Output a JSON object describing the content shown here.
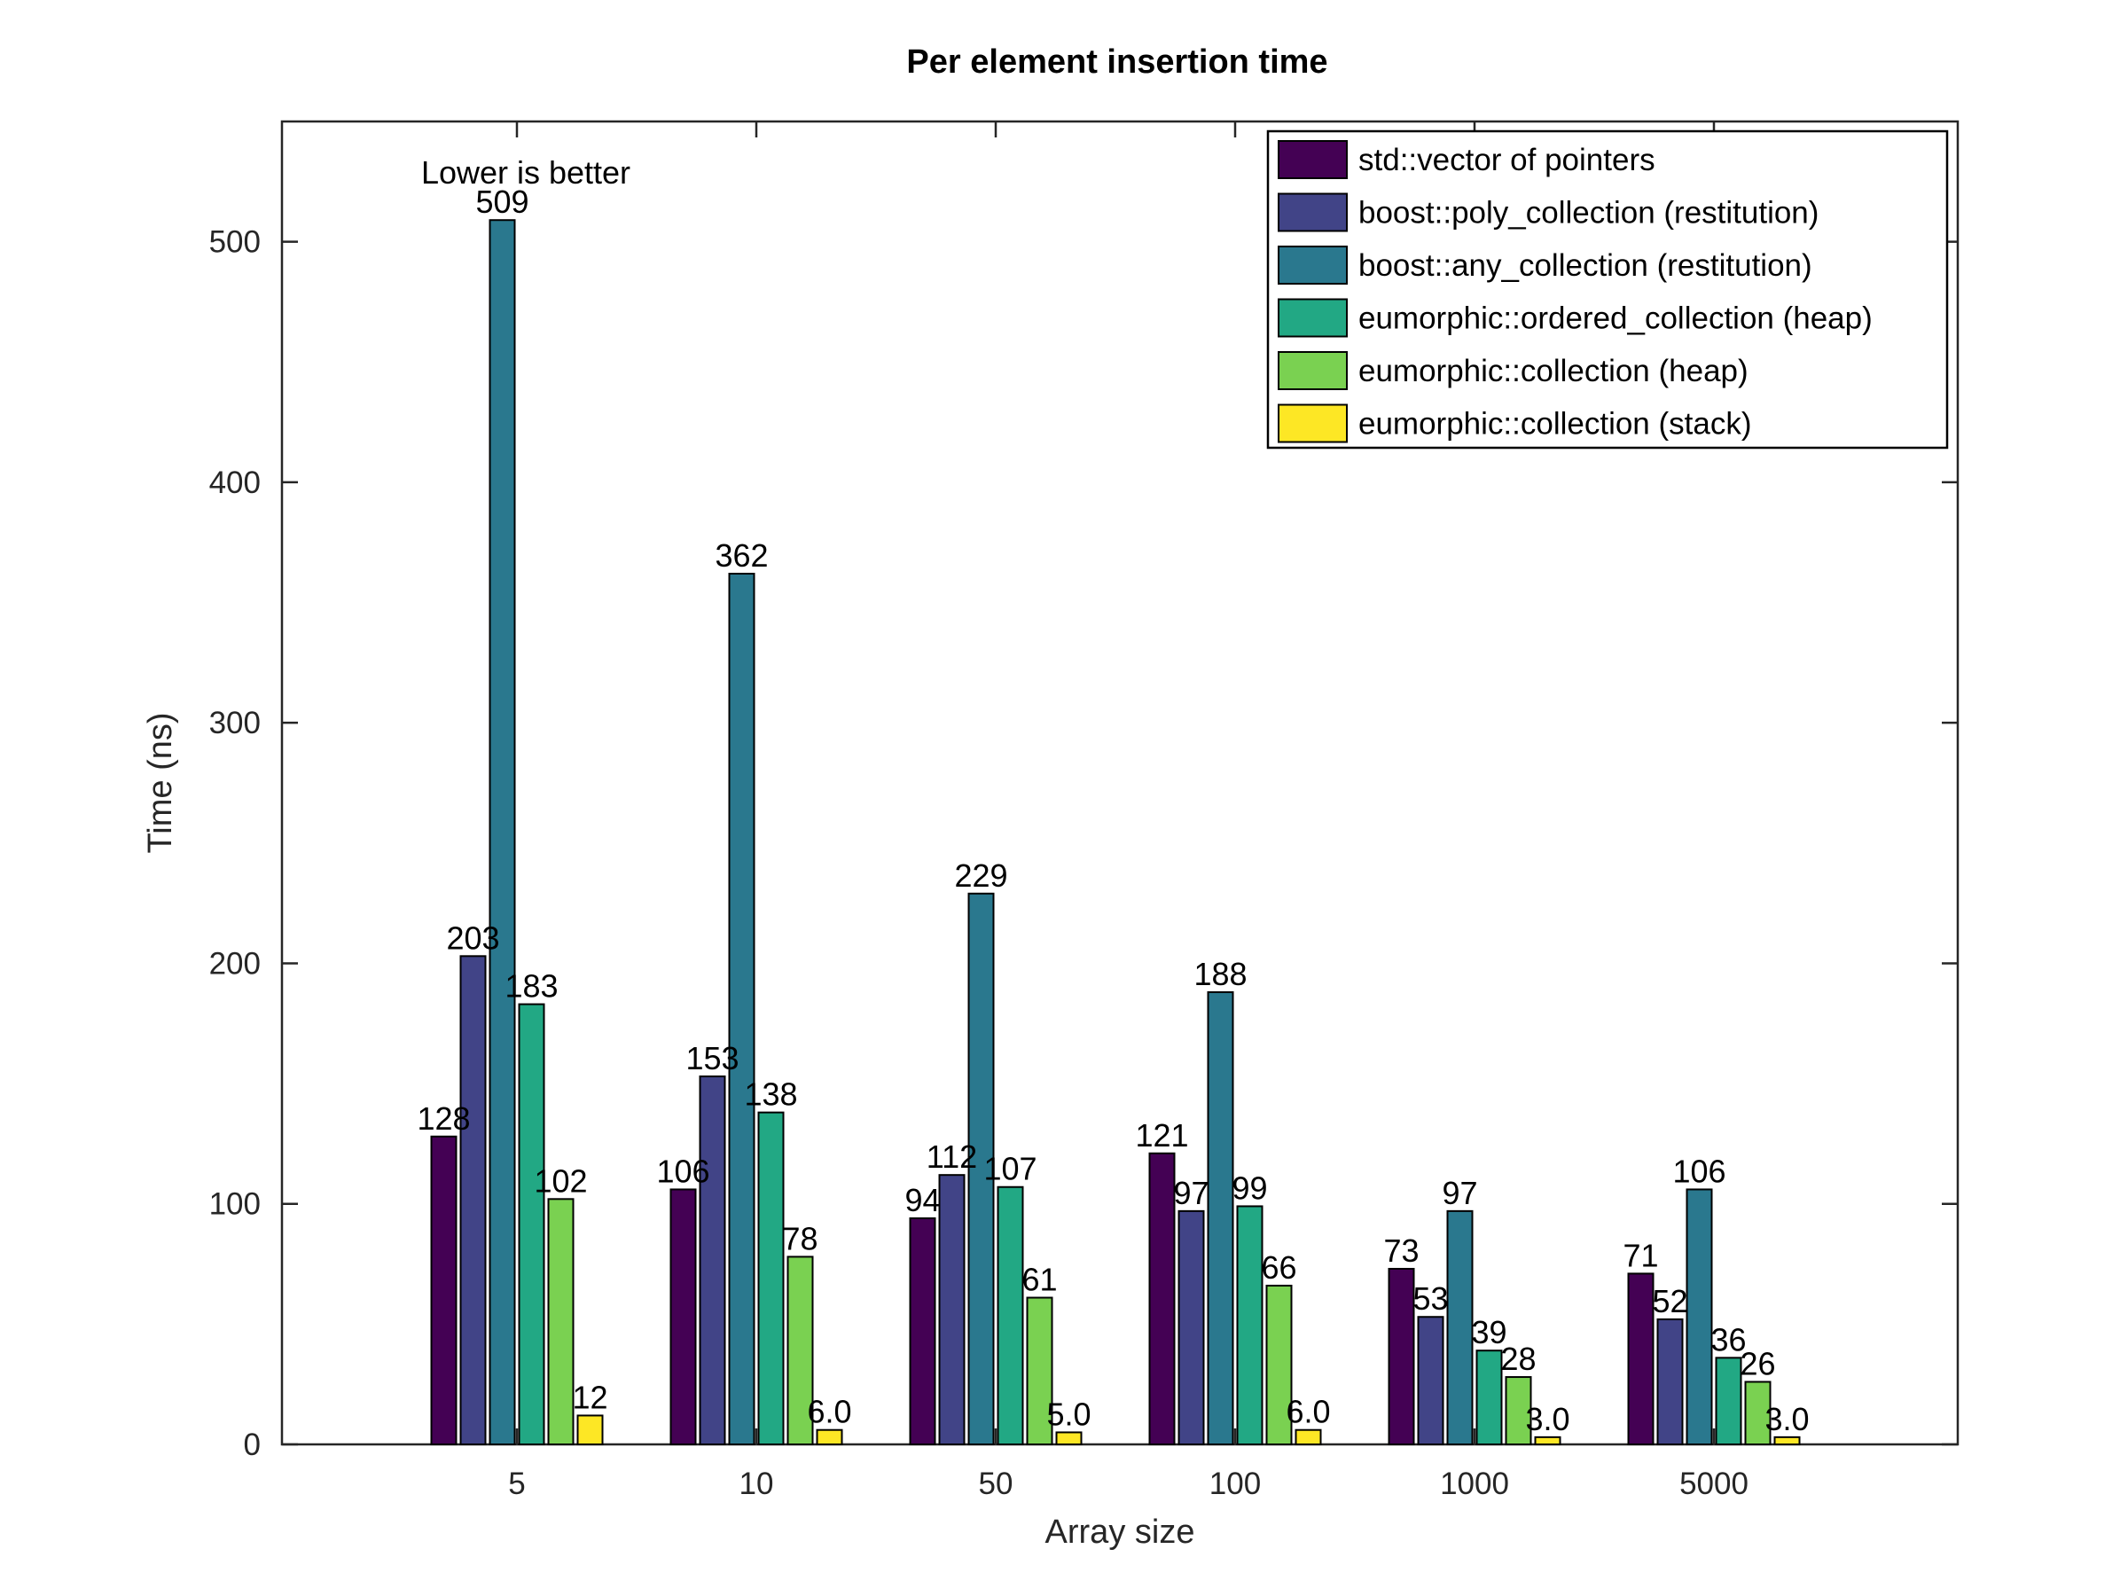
{
  "chart_data": {
    "type": "bar",
    "title": "Per element insertion time",
    "xlabel": "Array size",
    "ylabel": "Time (ns)",
    "ylim": [
      0,
      550
    ],
    "yticks": [
      0,
      100,
      200,
      300,
      400,
      500
    ],
    "categories": [
      "5",
      "10",
      "50",
      "100",
      "1000",
      "5000"
    ],
    "annotation": "Lower is better",
    "legend_position": "top-right",
    "grid": false,
    "series": [
      {
        "name": "std::vector of pointers",
        "color": "#440154",
        "values": [
          128,
          106,
          94,
          121,
          73,
          71
        ],
        "labels": [
          "128",
          "106",
          "94",
          "121",
          "73",
          "71"
        ]
      },
      {
        "name": "boost::poly_collection (restitution)",
        "color": "#414487",
        "values": [
          203,
          153,
          112,
          97,
          53,
          52
        ],
        "labels": [
          "203",
          "153",
          "112",
          "97",
          "53",
          "52"
        ]
      },
      {
        "name": "boost::any_collection (restitution)",
        "color": "#2a788e",
        "values": [
          509,
          362,
          229,
          188,
          97,
          106
        ],
        "labels": [
          "509",
          "362",
          "229",
          "188",
          "97",
          "106"
        ]
      },
      {
        "name": "eumorphic::ordered_collection (heap)",
        "color": "#22a884",
        "values": [
          183,
          138,
          107,
          99,
          39,
          36
        ],
        "labels": [
          "183",
          "138",
          "107",
          "99",
          "39",
          "36"
        ]
      },
      {
        "name": "eumorphic::collection (heap)",
        "color": "#7ad151",
        "values": [
          102,
          78,
          61,
          66,
          28,
          26
        ],
        "labels": [
          "102",
          "78",
          "61",
          "66",
          "28",
          "26"
        ]
      },
      {
        "name": "eumorphic::collection (stack)",
        "color": "#fde725",
        "values": [
          12,
          6.0,
          5.0,
          6.0,
          3.0,
          3.0
        ],
        "labels": [
          "12",
          "6.0",
          "5.0",
          "6.0",
          "3.0",
          "3.0"
        ]
      }
    ]
  }
}
